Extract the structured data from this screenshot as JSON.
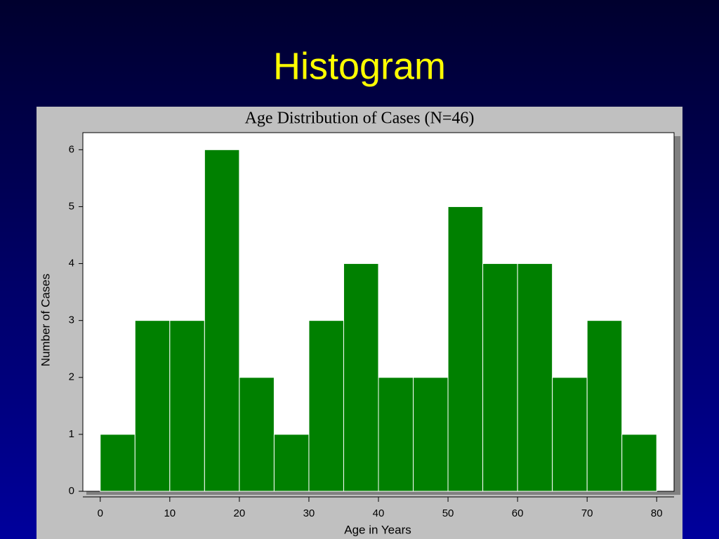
{
  "slide_title": "Histogram",
  "chart_data": {
    "type": "histogram",
    "title": "Age Distribution of Cases (N=46)",
    "xlabel": "Age in Years",
    "ylabel": "Number of Cases",
    "bins": [
      0,
      5,
      10,
      15,
      20,
      25,
      30,
      35,
      40,
      45,
      50,
      55,
      60,
      65,
      70,
      75,
      80
    ],
    "values": [
      1,
      3,
      3,
      6,
      2,
      1,
      3,
      4,
      2,
      2,
      5,
      4,
      4,
      2,
      3,
      1
    ],
    "color": "#008000",
    "xlim": [
      -2.5,
      82.5
    ],
    "ylim": [
      0,
      6.3
    ],
    "xticks": [
      0,
      10,
      20,
      30,
      40,
      50,
      60,
      70,
      80
    ],
    "yticks": [
      0,
      1,
      2,
      3,
      4,
      5,
      6
    ]
  }
}
